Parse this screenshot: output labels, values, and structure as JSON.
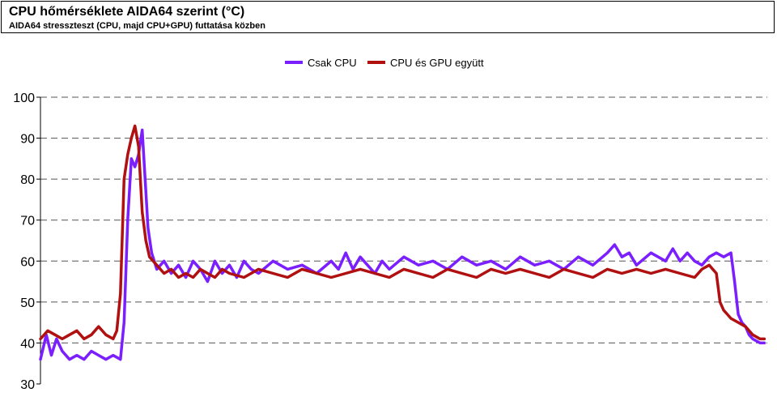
{
  "header": {
    "title": "CPU hőmérséklete AIDA64 szerint (°C)",
    "subtitle": "AIDA64 stresszteszt (CPU, majd CPU+GPU) futtatása közben"
  },
  "chart_data": {
    "type": "line",
    "ylim": [
      30,
      100
    ],
    "yticks": [
      "30",
      "40",
      "50",
      "60",
      "70",
      "80",
      "90",
      "100"
    ],
    "xlim": [
      0,
      100
    ],
    "grid": true,
    "legend_placement": "top-center",
    "series": [
      {
        "name": "Csak CPU",
        "color": "#7b1fff",
        "points": [
          [
            0,
            36
          ],
          [
            0.8,
            42
          ],
          [
            1.5,
            37
          ],
          [
            2.2,
            41
          ],
          [
            3,
            38
          ],
          [
            4,
            36
          ],
          [
            5,
            37
          ],
          [
            6,
            36
          ],
          [
            7,
            38
          ],
          [
            8,
            37
          ],
          [
            9,
            36
          ],
          [
            10,
            37
          ],
          [
            11,
            36
          ],
          [
            11.5,
            45
          ],
          [
            12,
            70
          ],
          [
            12.5,
            85
          ],
          [
            13,
            83
          ],
          [
            13.5,
            86
          ],
          [
            14,
            92
          ],
          [
            14.4,
            80
          ],
          [
            14.8,
            68
          ],
          [
            15.3,
            62
          ],
          [
            16,
            58
          ],
          [
            17,
            60
          ],
          [
            18,
            57
          ],
          [
            19,
            59
          ],
          [
            20,
            56
          ],
          [
            21,
            60
          ],
          [
            22,
            58
          ],
          [
            23,
            55
          ],
          [
            24,
            60
          ],
          [
            25,
            57
          ],
          [
            26,
            59
          ],
          [
            27,
            56
          ],
          [
            28,
            60
          ],
          [
            29,
            58
          ],
          [
            30,
            57
          ],
          [
            32,
            60
          ],
          [
            34,
            58
          ],
          [
            36,
            59
          ],
          [
            38,
            57
          ],
          [
            40,
            60
          ],
          [
            41,
            58
          ],
          [
            42,
            62
          ],
          [
            43,
            58
          ],
          [
            44,
            61
          ],
          [
            45,
            59
          ],
          [
            46,
            57
          ],
          [
            47,
            60
          ],
          [
            48,
            58
          ],
          [
            50,
            61
          ],
          [
            52,
            59
          ],
          [
            54,
            60
          ],
          [
            56,
            58
          ],
          [
            58,
            61
          ],
          [
            60,
            59
          ],
          [
            62,
            60
          ],
          [
            64,
            58
          ],
          [
            66,
            61
          ],
          [
            68,
            59
          ],
          [
            70,
            60
          ],
          [
            72,
            58
          ],
          [
            74,
            61
          ],
          [
            76,
            59
          ],
          [
            78,
            62
          ],
          [
            79,
            64
          ],
          [
            80,
            61
          ],
          [
            81,
            62
          ],
          [
            82,
            59
          ],
          [
            84,
            62
          ],
          [
            86,
            60
          ],
          [
            87,
            63
          ],
          [
            88,
            60
          ],
          [
            89,
            62
          ],
          [
            90,
            60
          ],
          [
            91,
            59
          ],
          [
            92,
            61
          ],
          [
            93,
            62
          ],
          [
            94,
            61
          ],
          [
            95,
            62
          ],
          [
            95.5,
            55
          ],
          [
            96,
            47
          ],
          [
            96.5,
            45
          ],
          [
            97,
            44
          ],
          [
            97.5,
            42
          ],
          [
            98,
            41
          ],
          [
            99,
            40
          ],
          [
            99.6,
            40
          ]
        ]
      },
      {
        "name": "CPU és GPU együtt",
        "color": "#b01010",
        "points": [
          [
            0,
            41
          ],
          [
            0.5,
            42
          ],
          [
            1,
            43
          ],
          [
            2,
            42
          ],
          [
            3,
            41
          ],
          [
            4,
            42
          ],
          [
            5,
            43
          ],
          [
            6,
            41
          ],
          [
            7,
            42
          ],
          [
            8,
            44
          ],
          [
            9,
            42
          ],
          [
            10,
            41
          ],
          [
            10.5,
            43
          ],
          [
            11,
            52
          ],
          [
            11.5,
            80
          ],
          [
            12,
            86
          ],
          [
            12.5,
            90
          ],
          [
            13,
            93
          ],
          [
            13.5,
            88
          ],
          [
            14,
            72
          ],
          [
            14.5,
            65
          ],
          [
            15,
            61
          ],
          [
            16,
            59
          ],
          [
            17,
            57
          ],
          [
            18,
            58
          ],
          [
            19,
            56
          ],
          [
            20,
            57
          ],
          [
            21,
            56
          ],
          [
            22,
            58
          ],
          [
            23,
            57
          ],
          [
            24,
            56
          ],
          [
            25,
            58
          ],
          [
            26,
            57
          ],
          [
            28,
            56
          ],
          [
            30,
            58
          ],
          [
            32,
            57
          ],
          [
            34,
            56
          ],
          [
            36,
            58
          ],
          [
            38,
            57
          ],
          [
            40,
            56
          ],
          [
            42,
            57
          ],
          [
            44,
            58
          ],
          [
            46,
            57
          ],
          [
            48,
            56
          ],
          [
            50,
            58
          ],
          [
            52,
            57
          ],
          [
            54,
            56
          ],
          [
            56,
            58
          ],
          [
            58,
            57
          ],
          [
            60,
            56
          ],
          [
            62,
            58
          ],
          [
            64,
            57
          ],
          [
            66,
            58
          ],
          [
            68,
            57
          ],
          [
            70,
            56
          ],
          [
            72,
            58
          ],
          [
            74,
            57
          ],
          [
            76,
            56
          ],
          [
            78,
            58
          ],
          [
            80,
            57
          ],
          [
            82,
            58
          ],
          [
            84,
            57
          ],
          [
            86,
            58
          ],
          [
            88,
            57
          ],
          [
            90,
            56
          ],
          [
            91,
            58
          ],
          [
            92,
            59
          ],
          [
            93,
            57
          ],
          [
            93.5,
            50
          ],
          [
            94,
            48
          ],
          [
            94.5,
            47
          ],
          [
            95,
            46
          ],
          [
            96,
            45
          ],
          [
            97,
            44
          ],
          [
            98,
            42
          ],
          [
            99,
            41
          ],
          [
            99.6,
            41
          ]
        ]
      }
    ]
  }
}
